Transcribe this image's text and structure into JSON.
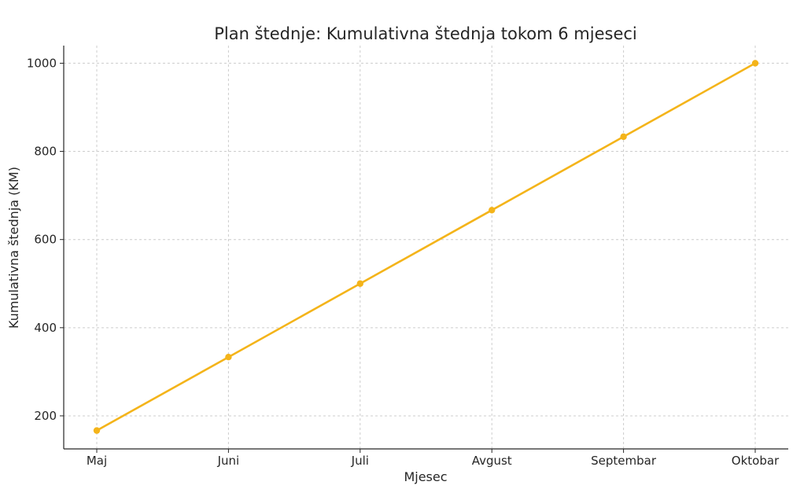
{
  "chart_data": {
    "type": "line",
    "title": "Plan štednje: Kumulativna štednja tokom 6 mjeseci",
    "xlabel": "Mjesec",
    "ylabel": "Kumulativna štednja (KM)",
    "categories": [
      "Maj",
      "Juni",
      "Juli",
      "Avgust",
      "Septembar",
      "Oktobar"
    ],
    "series": [
      {
        "values": [
          166.67,
          333.33,
          500,
          666.67,
          833.33,
          1000
        ],
        "color": "#f4b41a"
      }
    ],
    "yticks": [
      200,
      400,
      600,
      800,
      1000
    ],
    "ylim": [
      125,
      1040
    ],
    "grid": true,
    "legend": "none"
  }
}
